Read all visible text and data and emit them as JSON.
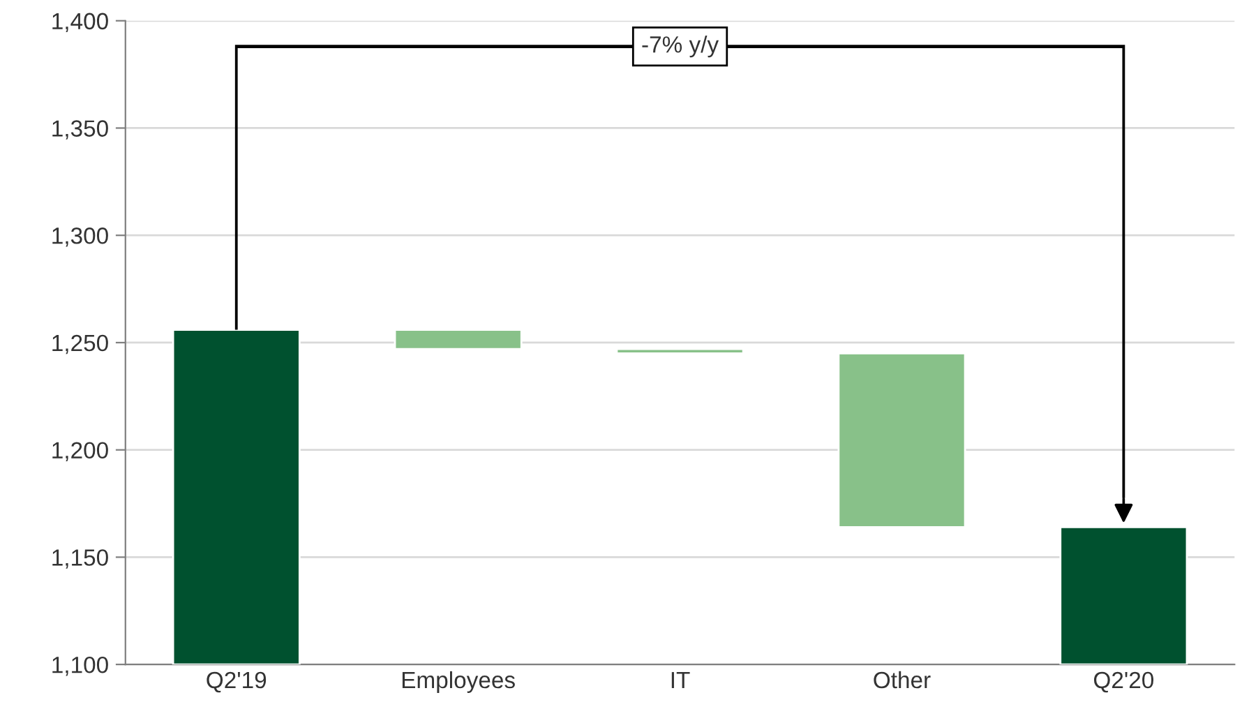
{
  "chart_data": {
    "type": "bar",
    "categories": [
      "Q2'19",
      "Employees",
      "IT",
      "Other",
      "Q2'20"
    ],
    "values": [
      156,
      -9,
      -2,
      -81,
      64
    ],
    "base": [
      1100,
      1256,
      1247,
      1245,
      1100
    ],
    "colors": [
      "#00512f",
      "#88c189",
      "#88c189",
      "#88c189",
      "#00512f"
    ],
    "ylim": [
      1100,
      1400
    ],
    "yticks": [
      {
        "value": 1100,
        "label": "1,100"
      },
      {
        "value": 1150,
        "label": "1,150"
      },
      {
        "value": 1200,
        "label": "1,200"
      },
      {
        "value": 1250,
        "label": "1,250"
      },
      {
        "value": 1300,
        "label": "1,300"
      },
      {
        "value": 1350,
        "label": "1,350"
      },
      {
        "value": 1400,
        "label": "1,400"
      }
    ],
    "grid": "y",
    "annotations": [
      "-7% y/y"
    ]
  }
}
